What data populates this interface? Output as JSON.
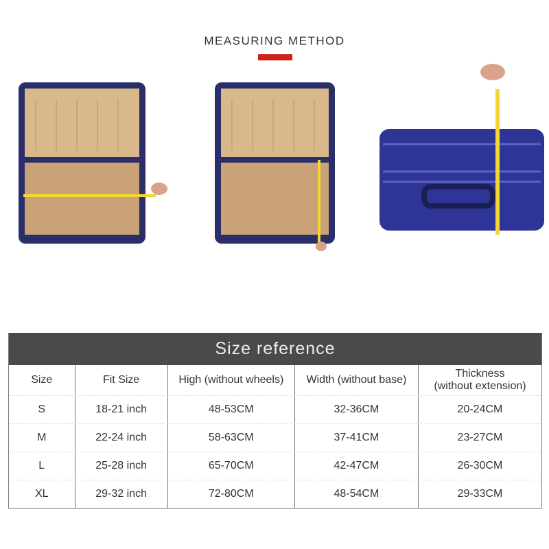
{
  "heading": "MEASURING METHOD",
  "accent_color": "#d0201a",
  "table": {
    "title": "Size reference",
    "headers": [
      "Size",
      "Fit Size",
      "High (without wheels)",
      "Width (without base)",
      "Thickness\n(without extension)"
    ],
    "rows": [
      [
        "S",
        "18-21 inch",
        "48-53CM",
        "32-36CM",
        "20-24CM"
      ],
      [
        "M",
        "22-24 inch",
        "58-63CM",
        "37-41CM",
        "23-27CM"
      ],
      [
        "L",
        "25-28 inch",
        "65-70CM",
        "42-47CM",
        "26-30CM"
      ],
      [
        "XL",
        "29-32 inch",
        "72-80CM",
        "48-54CM",
        "29-33CM"
      ]
    ]
  }
}
